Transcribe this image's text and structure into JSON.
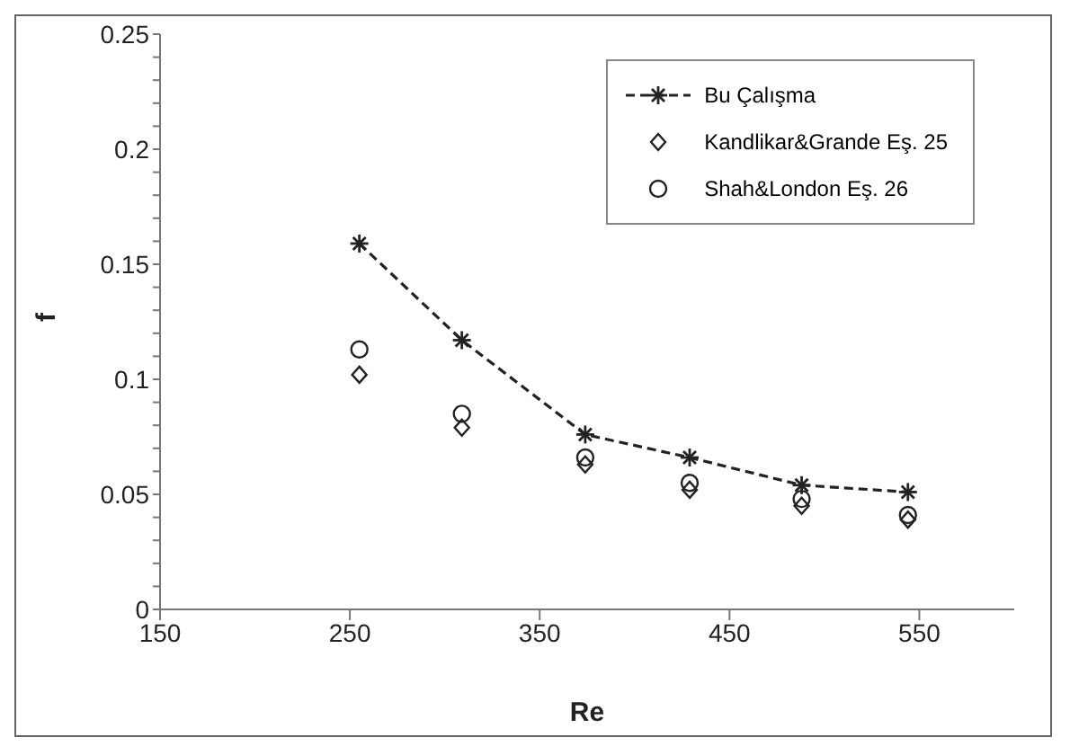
{
  "chart_data": {
    "type": "scatter",
    "xlabel": "Re",
    "ylabel": "f",
    "xlim": [
      150,
      600
    ],
    "xticks": [
      150,
      250,
      350,
      450,
      550
    ],
    "ylim": [
      0,
      0.25
    ],
    "yticks": [
      0,
      {
        "value": 0.01,
        "label": null
      },
      {
        "value": 0.02,
        "label": null
      },
      {
        "value": 0.03,
        "label": null
      },
      {
        "value": 0.04,
        "label": null
      },
      0.05,
      {
        "value": 0.06,
        "label": null
      },
      {
        "value": 0.07,
        "label": null
      },
      {
        "value": 0.08,
        "label": null
      },
      {
        "value": 0.09,
        "label": null
      },
      0.1,
      {
        "value": 0.11,
        "label": null
      },
      {
        "value": 0.12,
        "label": null
      },
      {
        "value": 0.13,
        "label": null
      },
      {
        "value": 0.14,
        "label": null
      },
      0.15,
      {
        "value": 0.16,
        "label": null
      },
      {
        "value": 0.17,
        "label": null
      },
      {
        "value": 0.18,
        "label": null
      },
      {
        "value": 0.19,
        "label": null
      },
      0.2,
      {
        "value": 0.21,
        "label": null
      },
      {
        "value": 0.22,
        "label": null
      },
      {
        "value": 0.23,
        "label": null
      },
      {
        "value": 0.24,
        "label": null
      },
      0.25
    ],
    "grid": false,
    "legend": "top right",
    "x": [
      255,
      309,
      374,
      429,
      488,
      544
    ],
    "series": [
      {
        "name": "Bu Çalışma",
        "type": "line",
        "color": "#222222",
        "marker": "cross",
        "line_style": "dashed",
        "values": [
          0.159,
          0.117,
          0.076,
          0.066,
          0.054,
          0.051
        ]
      },
      {
        "name": "Kandlikar&Grande Eş. 25",
        "color": "#222222",
        "marker": "diamond",
        "values": [
          0.102,
          0.079,
          0.063,
          0.052,
          0.045,
          0.039
        ]
      },
      {
        "name": "Shah&London Eş. 26",
        "color": "#222222",
        "marker": "circle",
        "values": [
          0.113,
          0.085,
          0.066,
          0.055,
          0.048,
          0.041
        ]
      }
    ]
  }
}
